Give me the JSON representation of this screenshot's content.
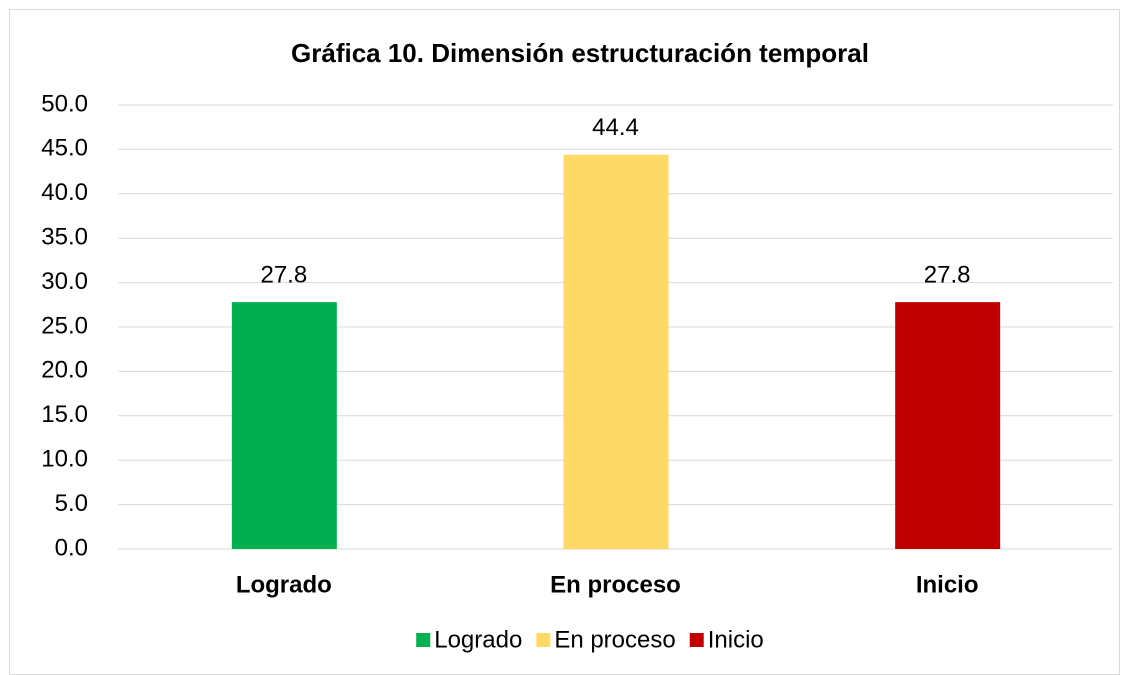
{
  "chart_data": {
    "type": "bar",
    "title": "Gráfica 10. Dimensión estructuración temporal",
    "categories": [
      "Logrado",
      "En proceso",
      "Inicio"
    ],
    "values": [
      27.8,
      44.4,
      27.8
    ],
    "colors": [
      "#00b050",
      "#ffd966",
      "#c00000"
    ],
    "ylim": [
      0,
      50
    ],
    "yticks": [
      {
        "value": 0,
        "label": "0.0"
      },
      {
        "value": 5,
        "label": "5.0"
      },
      {
        "value": 10,
        "label": "10.0"
      },
      {
        "value": 15,
        "label": "15.0"
      },
      {
        "value": 20,
        "label": "20.0"
      },
      {
        "value": 25,
        "label": "25.0"
      },
      {
        "value": 30,
        "label": "30.0"
      },
      {
        "value": 35,
        "label": "35.0"
      },
      {
        "value": 40,
        "label": "40.0"
      },
      {
        "value": 45,
        "label": "45.0"
      },
      {
        "value": 50,
        "label": "50.0"
      }
    ],
    "grid": true,
    "legend": "bottom"
  }
}
